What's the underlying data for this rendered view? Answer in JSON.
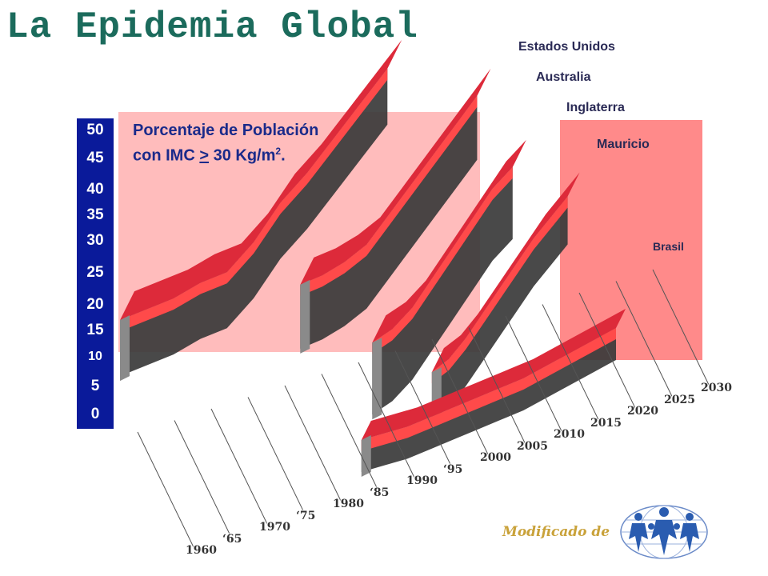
{
  "slide": {
    "title": "La Epidemia Global",
    "note_line1": "Porcentaje de Población",
    "note_line2_pre": "con IMC ",
    "note_line2_ge": ">",
    "note_line2_post": " 30 Kg/m",
    "note_sup": "2",
    "note_end": ".",
    "credit": "Modificado de"
  },
  "chart_data": {
    "type": "area",
    "title": "La Epidemia Global",
    "ylabel": "Porcentaje de Población con IMC > 30 Kg/m2.",
    "ylim": [
      0,
      50
    ],
    "yticks": [
      "50",
      "45",
      "40",
      "35",
      "30",
      "25",
      "20",
      "15",
      "10",
      "5",
      "0"
    ],
    "x": [
      "1960",
      "‘65",
      "1970",
      "‘75",
      "1980",
      "‘85",
      "1990",
      "‘95",
      "2000",
      "2005",
      "2010",
      "2015",
      "2020",
      "2025",
      "2030"
    ],
    "x_years": [
      1960,
      1965,
      1970,
      1975,
      1980,
      1985,
      1990,
      1995,
      2000,
      2005,
      2010,
      2015,
      2020,
      2025,
      2030
    ],
    "series": [
      {
        "name": "Estados Unidos",
        "values": [
          10,
          11,
          12,
          14,
          15,
          20,
          27,
          32,
          38,
          44,
          50,
          null,
          null,
          null,
          null
        ]
      },
      {
        "name": "Australia",
        "values": [
          null,
          null,
          10,
          11,
          13,
          16,
          22,
          28,
          34,
          40,
          46,
          null,
          null,
          null,
          null
        ]
      },
      {
        "name": "Inglaterra",
        "values": [
          null,
          null,
          null,
          null,
          8,
          10,
          14,
          20,
          26,
          32,
          38,
          42,
          null,
          null,
          null
        ]
      },
      {
        "name": "Mauricio",
        "values": [
          null,
          null,
          null,
          null,
          6,
          8,
          12,
          17,
          22,
          27,
          32,
          36,
          40,
          null,
          null
        ]
      },
      {
        "name": "Brasil",
        "values": [
          null,
          null,
          null,
          3,
          4,
          5,
          7,
          9,
          11,
          13,
          15,
          18,
          21,
          24,
          27
        ]
      }
    ],
    "grid": false,
    "colors": {
      "front_face": "#ff4a4a",
      "top_face": "#dd2a3a",
      "side_dark": "#3a3a3a",
      "backdrop": "#ffbcbc",
      "axis_box": "#0a1a9a",
      "title": "#1b6b5c"
    }
  }
}
